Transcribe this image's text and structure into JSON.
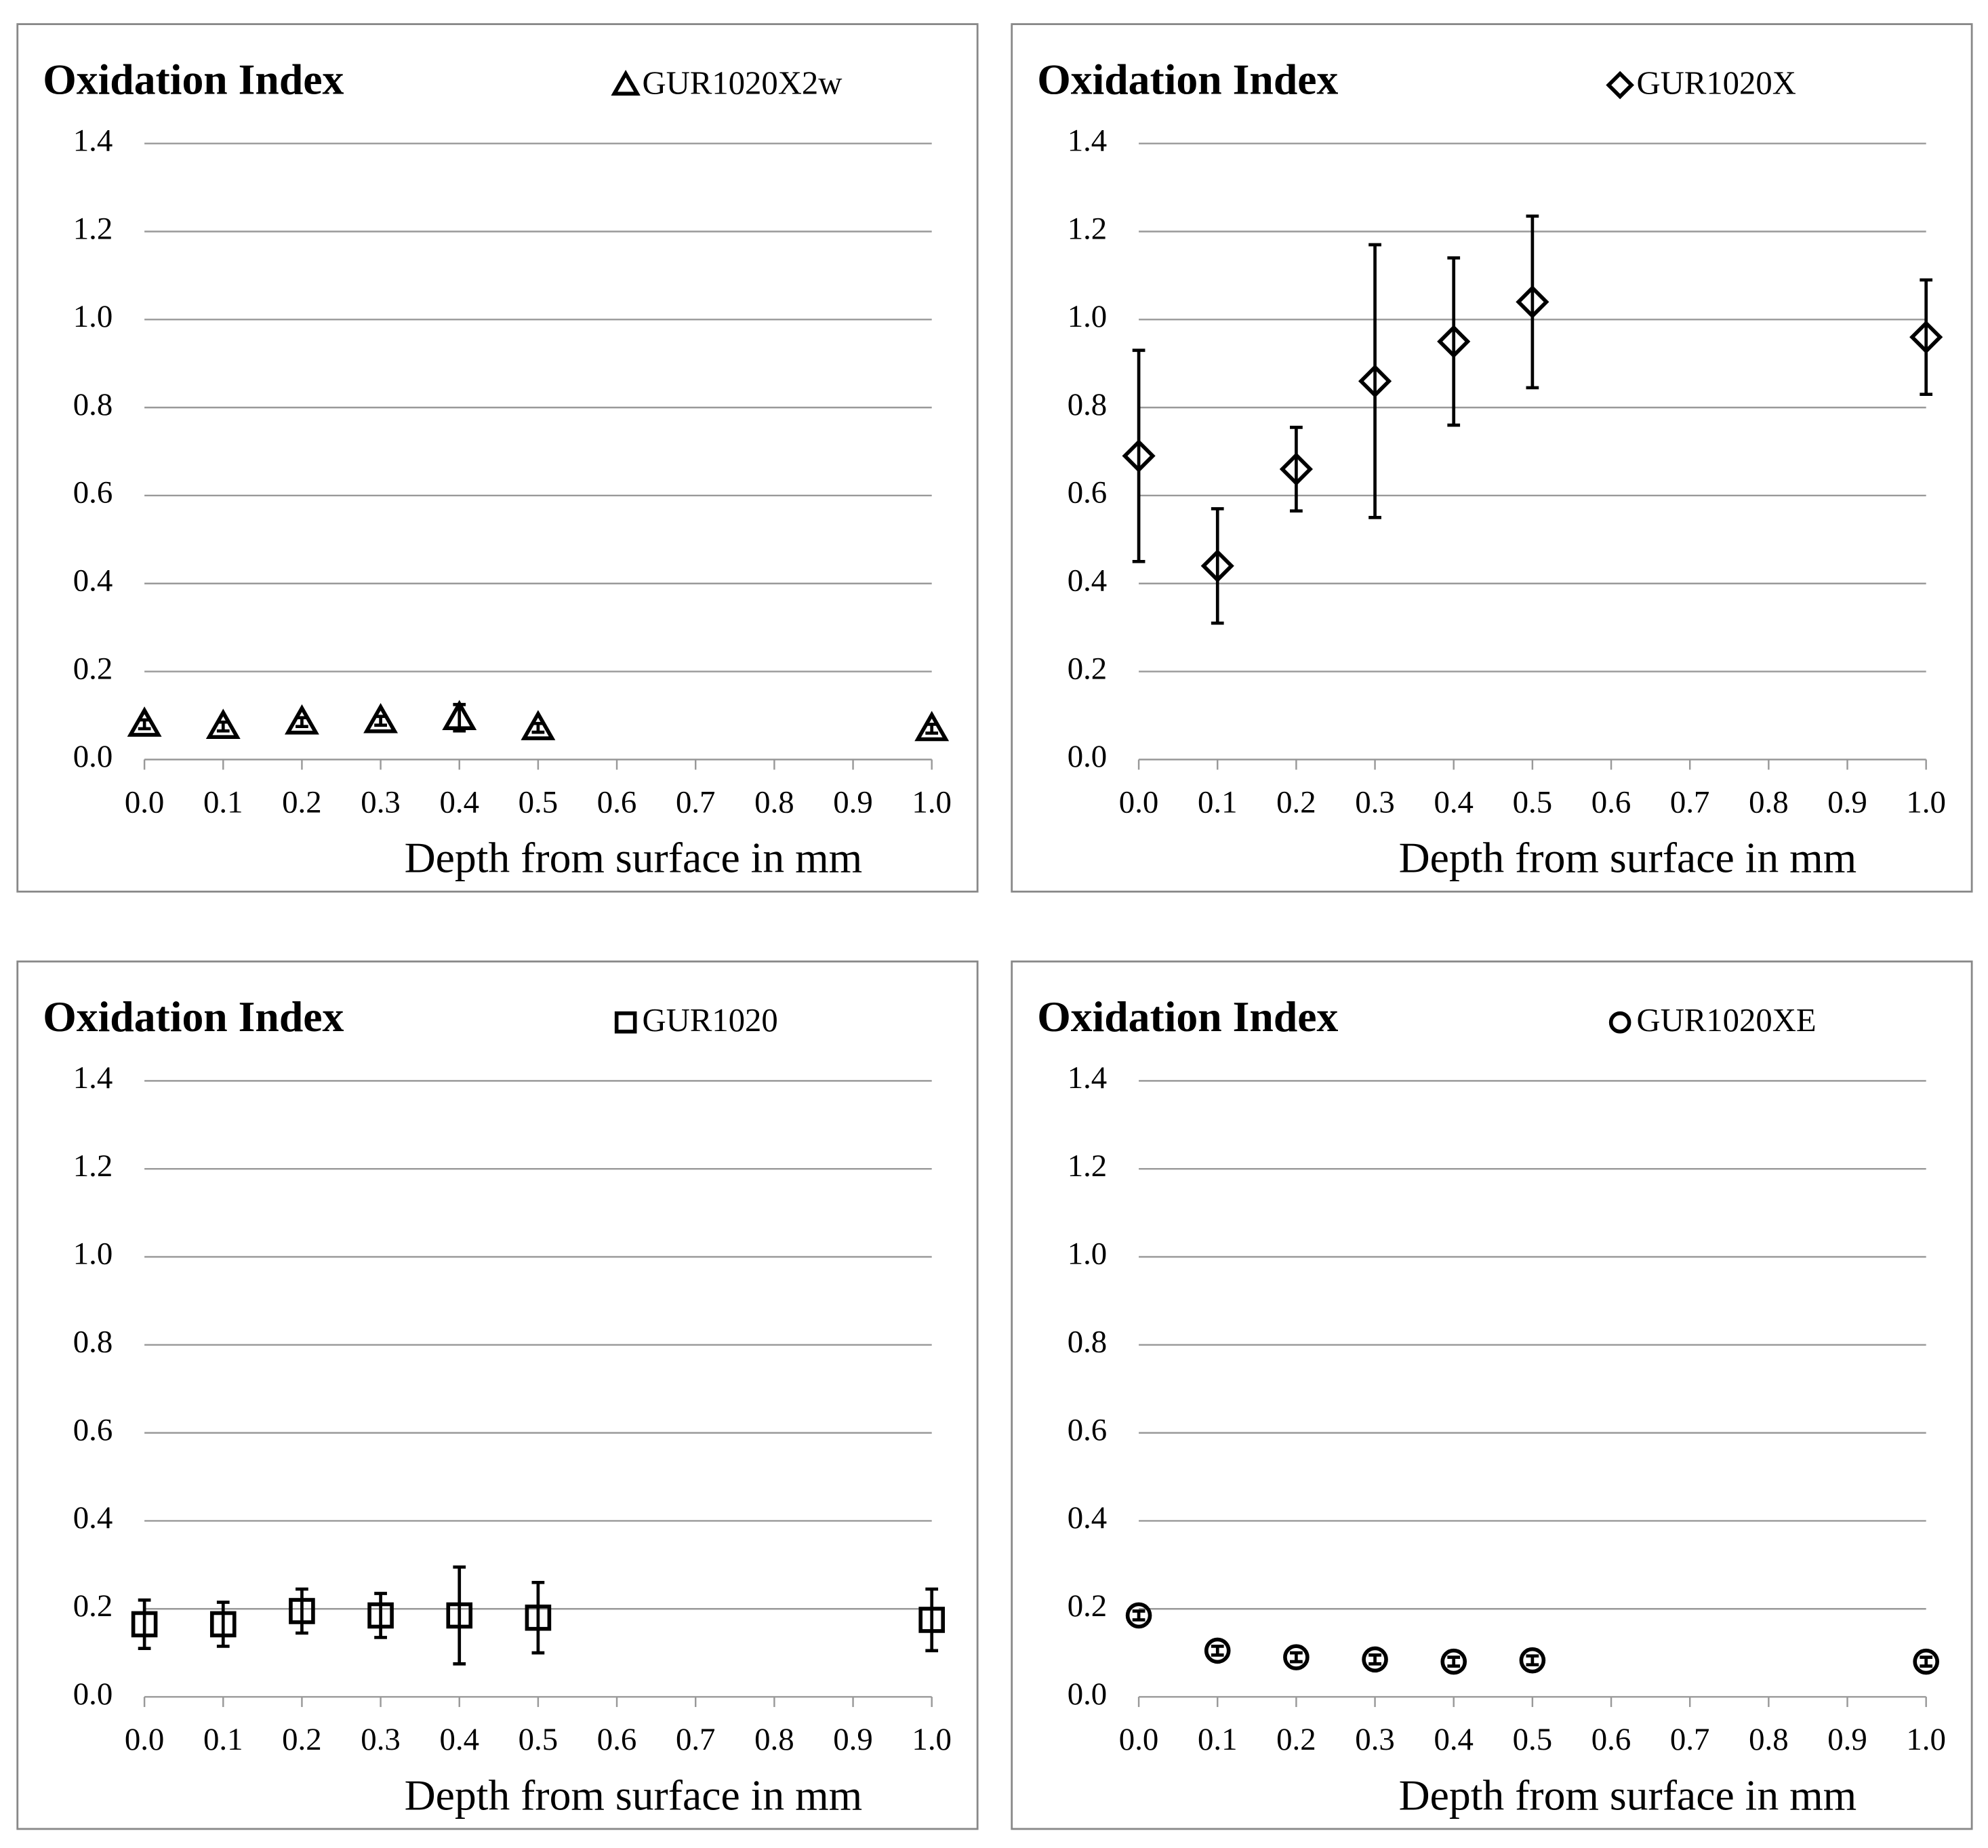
{
  "chart_data": [
    {
      "type": "scatter",
      "title": "Oxidation Index",
      "xlabel": "Depth from surface in mm",
      "series": [
        {
          "name": "GUR1020X2w",
          "color": "#000000",
          "marker": "triangle",
          "x": [
            0,
            0.1,
            0.2,
            0.3,
            0.4,
            0.5,
            1.0
          ],
          "values": [
            0.08,
            0.075,
            0.085,
            0.088,
            0.095,
            0.072,
            0.07
          ],
          "errors": [
            0.01,
            0.01,
            0.01,
            0.01,
            0.03,
            0.01,
            0.01
          ]
        }
      ],
      "xlim": [
        0,
        1
      ],
      "ylim": [
        0,
        1.4
      ],
      "xticks": [
        {
          "value": 0,
          "label": "0.0"
        },
        0.1,
        0.2,
        0.3,
        0.4,
        0.5,
        0.6,
        0.7,
        0.8,
        0.9,
        {
          "value": 1,
          "label": "1.0"
        }
      ],
      "yticks": [
        {
          "value": 0,
          "label": "0.0"
        },
        0.2,
        0.4,
        0.6,
        0.8,
        {
          "value": 1,
          "label": "1.0"
        },
        1.2,
        1.4
      ],
      "grid": true
    },
    {
      "type": "scatter",
      "title": "Oxidation Index",
      "xlabel": "Depth from surface in mm",
      "series": [
        {
          "name": "GUR1020X",
          "color": "#000000",
          "marker": "diamond",
          "x": [
            0,
            0.1,
            0.2,
            0.3,
            0.4,
            0.5,
            1.0
          ],
          "values": [
            0.69,
            0.44,
            0.66,
            0.86,
            0.95,
            1.04,
            0.96
          ],
          "errors": [
            0.24,
            0.13,
            0.095,
            0.31,
            0.19,
            0.195,
            0.13
          ]
        }
      ],
      "xlim": [
        0,
        1
      ],
      "ylim": [
        0,
        1.4
      ],
      "xticks": [
        {
          "value": 0,
          "label": "0.0"
        },
        0.1,
        0.2,
        0.3,
        0.4,
        0.5,
        0.6,
        0.7,
        0.8,
        0.9,
        {
          "value": 1,
          "label": "1.0"
        }
      ],
      "yticks": [
        {
          "value": 0,
          "label": "0.0"
        },
        0.2,
        0.4,
        0.6,
        0.8,
        {
          "value": 1,
          "label": "1.0"
        },
        1.2,
        1.4
      ],
      "grid": true
    },
    {
      "type": "scatter",
      "title": "Oxidation Index",
      "xlabel": "Depth from surface in mm",
      "series": [
        {
          "name": "GUR1020",
          "color": "#000000",
          "marker": "square",
          "x": [
            0,
            0.1,
            0.2,
            0.3,
            0.4,
            0.5,
            1.0
          ],
          "values": [
            0.165,
            0.165,
            0.195,
            0.185,
            0.185,
            0.18,
            0.175
          ],
          "errors": [
            0.055,
            0.05,
            0.05,
            0.05,
            0.11,
            0.08,
            0.07
          ]
        }
      ],
      "xlim": [
        0,
        1
      ],
      "ylim": [
        0,
        1.4
      ],
      "xticks": [
        {
          "value": 0,
          "label": "0.0"
        },
        0.1,
        0.2,
        0.3,
        0.4,
        0.5,
        0.6,
        0.7,
        0.8,
        0.9,
        {
          "value": 1,
          "label": "1.0"
        }
      ],
      "yticks": [
        {
          "value": 0,
          "label": "0.0"
        },
        0.2,
        0.4,
        0.6,
        0.8,
        {
          "value": 1,
          "label": "1.0"
        },
        1.2,
        1.4
      ],
      "grid": true
    },
    {
      "type": "scatter",
      "title": "Oxidation Index",
      "xlabel": "Depth from surface in mm",
      "series": [
        {
          "name": "GUR1020XE",
          "color": "#000000",
          "marker": "circle",
          "x": [
            0,
            0.1,
            0.2,
            0.3,
            0.4,
            0.5,
            1.0
          ],
          "values": [
            0.185,
            0.105,
            0.09,
            0.085,
            0.08,
            0.083,
            0.08
          ],
          "errors": [
            0.01,
            0.01,
            0.01,
            0.01,
            0.01,
            0.01,
            0.01
          ]
        }
      ],
      "xlim": [
        0,
        1
      ],
      "ylim": [
        0,
        1.4
      ],
      "xticks": [
        {
          "value": 0,
          "label": "0.0"
        },
        0.1,
        0.2,
        0.3,
        0.4,
        0.5,
        0.6,
        0.7,
        0.8,
        0.9,
        {
          "value": 1,
          "label": "1.0"
        }
      ],
      "yticks": [
        {
          "value": 0,
          "label": "0.0"
        },
        0.2,
        0.4,
        0.6,
        0.8,
        {
          "value": 1,
          "label": "1.0"
        },
        1.2,
        1.4
      ],
      "grid": true
    }
  ]
}
